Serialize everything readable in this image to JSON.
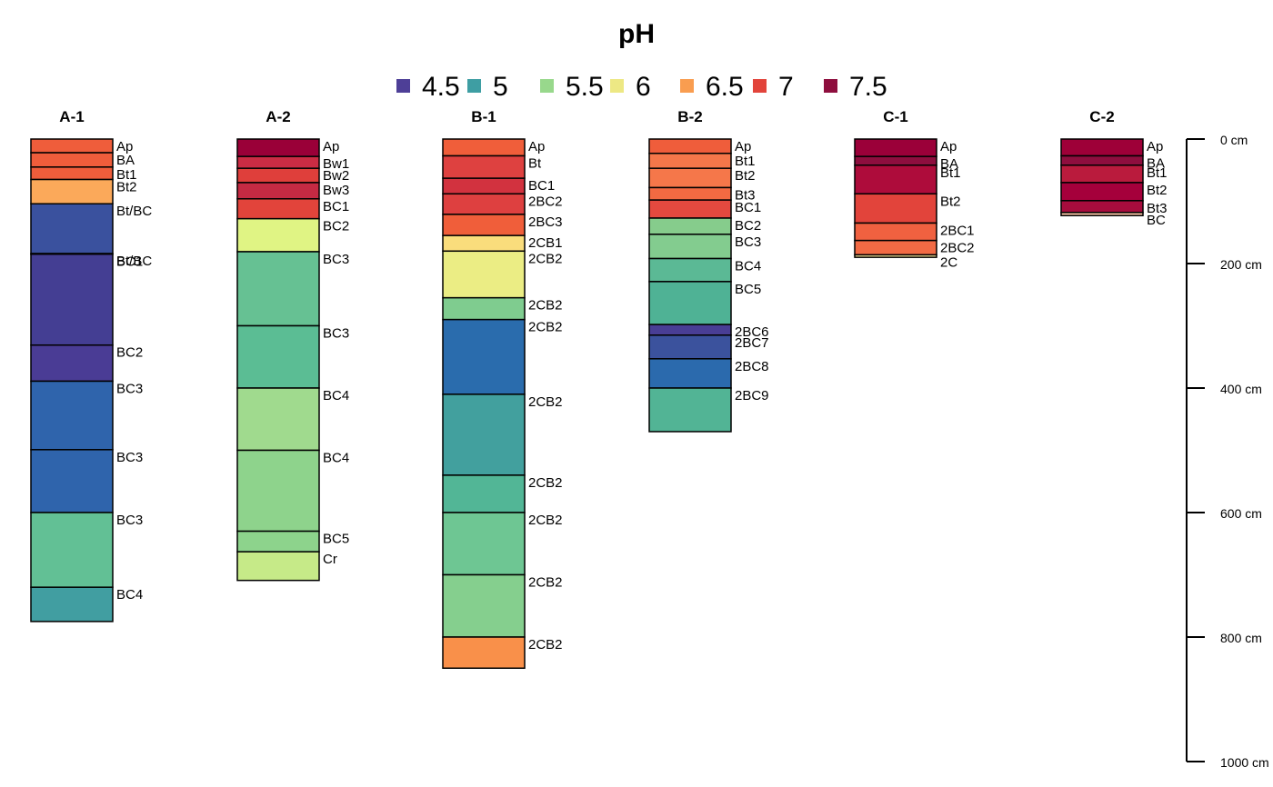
{
  "chart_data": {
    "type": "soil-profile",
    "title": "pH",
    "legend": {
      "entries": [
        {
          "label": "4.5",
          "color": "#4e3f97"
        },
        {
          "label": "5",
          "color": "#3e9ea3"
        },
        {
          "label": "5.5",
          "color": "#98d88c"
        },
        {
          "label": "6",
          "color": "#ede884"
        },
        {
          "label": "6.5",
          "color": "#f99d50"
        },
        {
          "label": "7",
          "color": "#e2443b"
        },
        {
          "label": "7.5",
          "color": "#8e0e3e"
        }
      ]
    },
    "depth_axis": {
      "unit": "cm",
      "ticks": [
        {
          "value": 0,
          "label": "0 cm"
        },
        {
          "value": 200,
          "label": "200 cm"
        },
        {
          "value": 400,
          "label": "400 cm"
        },
        {
          "value": 600,
          "label": "600 cm"
        },
        {
          "value": 800,
          "label": "800 cm"
        },
        {
          "value": 1000,
          "label": "1000 cm"
        }
      ],
      "range": [
        0,
        1000
      ]
    },
    "profiles": [
      {
        "name": "A-1",
        "horizons": [
          {
            "name": "Ap",
            "top": 0,
            "bottom": 22,
            "color": "#ef5d3b"
          },
          {
            "name": "BA",
            "top": 22,
            "bottom": 45,
            "color": "#ef5d3b"
          },
          {
            "name": "Bt1",
            "top": 45,
            "bottom": 65,
            "color": "#ef5d3b"
          },
          {
            "name": "Bt2",
            "top": 65,
            "bottom": 104,
            "color": "#fba95a"
          },
          {
            "name": "Bt/BC",
            "top": 104,
            "bottom": 184,
            "color": "#3a519e"
          },
          {
            "name": "Bt/BC",
            "top": 184,
            "bottom": 185,
            "color": "#3a519e"
          },
          {
            "name": "BC1",
            "top": 185,
            "bottom": 331,
            "color": "#443e93"
          },
          {
            "name": "BC2",
            "top": 331,
            "bottom": 389,
            "color": "#4a3c95"
          },
          {
            "name": "BC3",
            "top": 389,
            "bottom": 499,
            "color": "#2f64ac"
          },
          {
            "name": "BC3",
            "top": 499,
            "bottom": 600,
            "color": "#2f64ac"
          },
          {
            "name": "BC3",
            "top": 600,
            "bottom": 720,
            "color": "#62c095"
          },
          {
            "name": "BC4",
            "top": 720,
            "bottom": 775,
            "color": "#419ea1"
          }
        ]
      },
      {
        "name": "A-2",
        "horizons": [
          {
            "name": "Ap",
            "top": 0,
            "bottom": 28,
            "color": "#9a0038"
          },
          {
            "name": "Bw1",
            "top": 28,
            "bottom": 47,
            "color": "#cb2c44"
          },
          {
            "name": "Bw2",
            "top": 47,
            "bottom": 70,
            "color": "#df3f3b"
          },
          {
            "name": "Bw3",
            "top": 70,
            "bottom": 96,
            "color": "#c52a43"
          },
          {
            "name": "BC1",
            "top": 96,
            "bottom": 128,
            "color": "#e2443b"
          },
          {
            "name": "BC2",
            "top": 128,
            "bottom": 181,
            "color": "#e0f484"
          },
          {
            "name": "BC3",
            "top": 181,
            "bottom": 300,
            "color": "#66c193"
          },
          {
            "name": "BC3",
            "top": 300,
            "bottom": 400,
            "color": "#5bbd94"
          },
          {
            "name": "BC4",
            "top": 400,
            "bottom": 500,
            "color": "#a0da8e"
          },
          {
            "name": "BC4",
            "top": 500,
            "bottom": 630,
            "color": "#8ed38c"
          },
          {
            "name": "BC5",
            "top": 630,
            "bottom": 663,
            "color": "#8dd38c"
          },
          {
            "name": "Cr",
            "top": 663,
            "bottom": 709,
            "color": "#c6ea88"
          }
        ]
      },
      {
        "name": "B-1",
        "horizons": [
          {
            "name": "Ap",
            "top": 0,
            "bottom": 27,
            "color": "#f05e3a"
          },
          {
            "name": "Bt",
            "top": 27,
            "bottom": 63,
            "color": "#de4140"
          },
          {
            "name": "BC1",
            "top": 63,
            "bottom": 88,
            "color": "#d2323f"
          },
          {
            "name": "2BC2",
            "top": 88,
            "bottom": 121,
            "color": "#de4040"
          },
          {
            "name": "2BC3",
            "top": 121,
            "bottom": 155,
            "color": "#f05e3a"
          },
          {
            "name": "2CB1",
            "top": 155,
            "bottom": 180,
            "color": "#fadd7c"
          },
          {
            "name": "2CB2",
            "top": 180,
            "bottom": 255,
            "color": "#ebed84"
          },
          {
            "name": "2CB2",
            "top": 255,
            "bottom": 290,
            "color": "#7fcc8f"
          },
          {
            "name": "2CB2",
            "top": 290,
            "bottom": 410,
            "color": "#2a6cad"
          },
          {
            "name": "2CB2",
            "top": 410,
            "bottom": 540,
            "color": "#42a09e"
          },
          {
            "name": "2CB2",
            "top": 540,
            "bottom": 600,
            "color": "#52b696"
          },
          {
            "name": "2CB2",
            "top": 600,
            "bottom": 700,
            "color": "#6ec693"
          },
          {
            "name": "2CB2",
            "top": 700,
            "bottom": 800,
            "color": "#85cf8e"
          },
          {
            "name": "2CB2",
            "top": 800,
            "bottom": 850,
            "color": "#f9904a"
          }
        ]
      },
      {
        "name": "B-2",
        "horizons": [
          {
            "name": "Ap",
            "top": 0,
            "bottom": 23,
            "color": "#ef5d3b"
          },
          {
            "name": "Bt1",
            "top": 23,
            "bottom": 47,
            "color": "#f5774a"
          },
          {
            "name": "Bt2",
            "top": 47,
            "bottom": 78,
            "color": "#f5774a"
          },
          {
            "name": "Bt3",
            "top": 78,
            "bottom": 98,
            "color": "#f26a42"
          },
          {
            "name": "BC1",
            "top": 98,
            "bottom": 127,
            "color": "#e4493f"
          },
          {
            "name": "BC2",
            "top": 127,
            "bottom": 153,
            "color": "#86cc8c"
          },
          {
            "name": "BC3",
            "top": 153,
            "bottom": 192,
            "color": "#83cc8f"
          },
          {
            "name": "BC4",
            "top": 192,
            "bottom": 229,
            "color": "#5bb995"
          },
          {
            "name": "BC5",
            "top": 229,
            "bottom": 298,
            "color": "#4fb295"
          },
          {
            "name": "2BC6",
            "top": 298,
            "bottom": 315,
            "color": "#493e95"
          },
          {
            "name": "2BC7",
            "top": 315,
            "bottom": 353,
            "color": "#3b529d"
          },
          {
            "name": "2BC8",
            "top": 353,
            "bottom": 400,
            "color": "#2b6aad"
          },
          {
            "name": "2BC9",
            "top": 400,
            "bottom": 470,
            "color": "#52b495"
          }
        ]
      },
      {
        "name": "C-1",
        "horizons": [
          {
            "name": "Ap",
            "top": 0,
            "bottom": 28,
            "color": "#9b0039"
          },
          {
            "name": "BA",
            "top": 28,
            "bottom": 42,
            "color": "#8e0e3e"
          },
          {
            "name": "Bt1",
            "top": 42,
            "bottom": 88,
            "color": "#ae0c3b"
          },
          {
            "name": "Bt2",
            "top": 88,
            "bottom": 135,
            "color": "#e2443b"
          },
          {
            "name": "2BC1",
            "top": 135,
            "bottom": 163,
            "color": "#f06140"
          },
          {
            "name": "2BC2",
            "top": 163,
            "bottom": 186,
            "color": "#f26a44"
          },
          {
            "name": "2C",
            "top": 186,
            "bottom": 190,
            "color": "#fde898"
          }
        ]
      },
      {
        "name": "C-2",
        "horizons": [
          {
            "name": "Ap",
            "top": 0,
            "bottom": 27,
            "color": "#9e0038"
          },
          {
            "name": "BA",
            "top": 27,
            "bottom": 42,
            "color": "#8e0e3e"
          },
          {
            "name": "Bt1",
            "top": 42,
            "bottom": 70,
            "color": "#ba1b3d"
          },
          {
            "name": "Bt2",
            "top": 70,
            "bottom": 99,
            "color": "#a5003b"
          },
          {
            "name": "Bt3",
            "top": 99,
            "bottom": 118,
            "color": "#a70c3d"
          },
          {
            "name": "BC",
            "top": 118,
            "bottom": 123,
            "color": "#f7c3a5"
          }
        ]
      }
    ]
  }
}
